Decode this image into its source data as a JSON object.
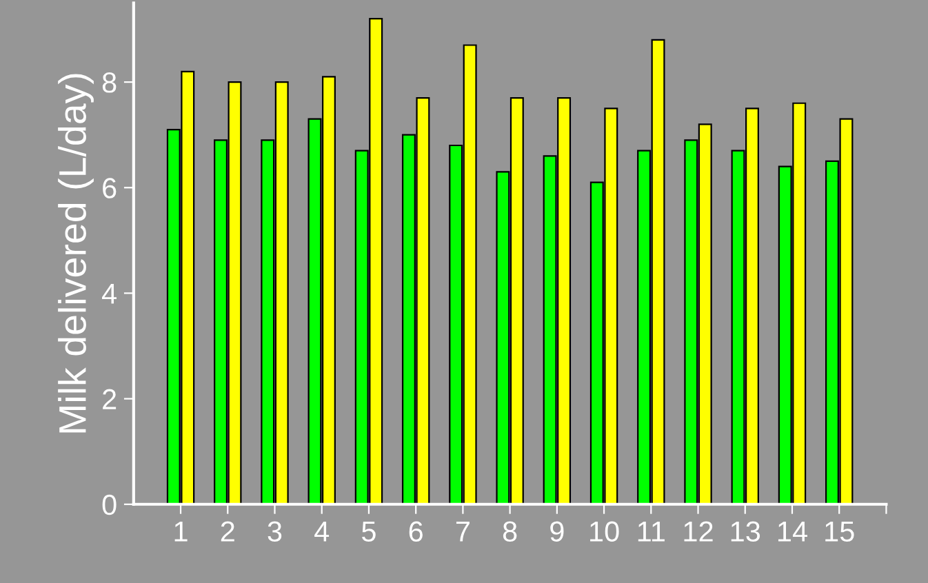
{
  "chart_data": {
    "type": "bar",
    "ylabel": "Milk delivered (L/day)",
    "categories": [
      "1",
      "2",
      "3",
      "4",
      "5",
      "6",
      "7",
      "8",
      "9",
      "10",
      "11",
      "12",
      "13",
      "14",
      "15"
    ],
    "series": [
      {
        "color": "#00ff00",
        "values": [
          7.1,
          6.9,
          6.9,
          7.3,
          6.7,
          7.0,
          6.8,
          6.3,
          6.6,
          6.1,
          6.7,
          6.9,
          6.7,
          6.4,
          6.5
        ]
      },
      {
        "color": "#ffff00",
        "values": [
          8.2,
          8.0,
          8.0,
          8.1,
          9.2,
          7.7,
          8.7,
          7.7,
          7.7,
          7.5,
          8.8,
          7.2,
          7.5,
          7.6,
          7.3
        ]
      }
    ],
    "ylim": [
      0,
      9.5
    ],
    "yticks": [
      0,
      2,
      4,
      6,
      8
    ]
  }
}
